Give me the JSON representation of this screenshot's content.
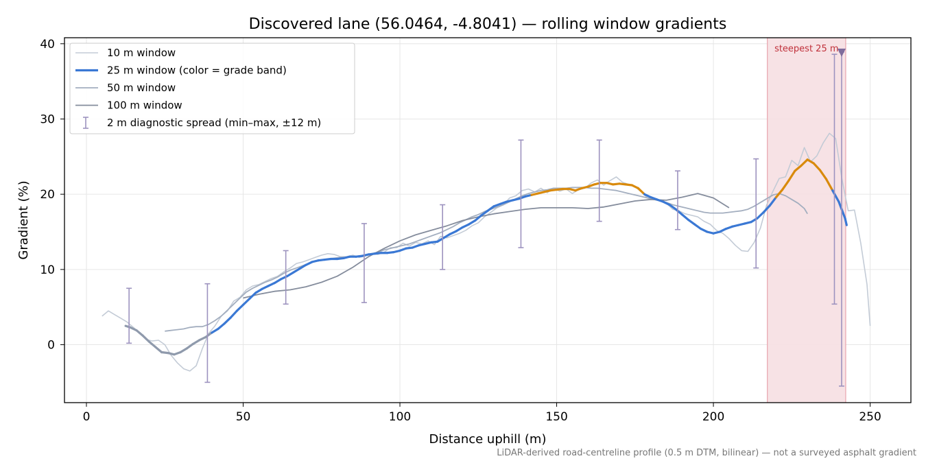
{
  "chart_data": {
    "type": "line",
    "title": "Discovered lane (56.0464, -4.8041) — rolling window gradients",
    "xlabel": "Distance uphill (m)",
    "ylabel": "Gradient (%)",
    "xlim": [
      -7,
      263
    ],
    "ylim": [
      -7.7,
      40.8
    ],
    "x_ticks": [
      0,
      50,
      100,
      150,
      200,
      250
    ],
    "y_ticks": [
      0,
      10,
      20,
      30,
      40
    ],
    "grid": true,
    "legend_position": "upper-left",
    "footnote": "LiDAR-derived road-centreline profile (0.5 m DTM, bilinear) — not a surveyed asphalt gradient",
    "colors": {
      "w10": "#c3cbd6",
      "w25_blue": "#3a78d4",
      "w25_orange": "#d98a0c",
      "w25_low": "#8f9aac",
      "w50": "#a3aebf",
      "w100": "#848c9c",
      "spread": "#9d93bf",
      "shade": "#f6dfe2",
      "shade_edge": "#e8a4ad",
      "marker": "#7f6c9c",
      "annotation": "#c0303a"
    },
    "legend": [
      {
        "key": "w10",
        "label": "10 m window"
      },
      {
        "key": "w25",
        "label": "25 m window (color = grade band)"
      },
      {
        "key": "w50",
        "label": "50 m window"
      },
      {
        "key": "w100",
        "label": "100 m window"
      },
      {
        "key": "spread",
        "label": "2 m diagnostic spread (min–max, ±12 m)"
      }
    ],
    "highlight": {
      "x_start": 217.2,
      "x_end": 242.2,
      "label": "steepest 25 m",
      "marker_x": 240.9,
      "marker_y": 38.9
    },
    "series": [
      {
        "name": "10 m window",
        "key": "w10",
        "x": [
          5,
          7,
          9,
          11,
          13,
          15,
          17,
          19,
          21,
          23,
          25,
          27,
          29,
          31,
          33,
          35,
          37,
          39,
          41,
          43,
          45,
          47,
          49,
          51,
          53,
          55,
          57,
          59,
          61,
          63,
          65,
          67,
          69,
          71,
          73,
          75,
          77,
          79,
          81,
          83,
          85,
          87,
          89,
          91,
          93,
          95,
          97,
          99,
          101,
          103,
          105,
          107,
          109,
          111,
          113,
          115,
          117,
          119,
          121,
          123,
          125,
          127,
          129,
          131,
          133,
          135,
          137,
          139,
          141,
          143,
          145,
          147,
          149,
          151,
          153,
          155,
          157,
          159,
          161,
          163,
          165,
          167,
          169,
          171,
          173,
          175,
          177,
          179,
          181,
          183,
          185,
          187,
          189,
          191,
          193,
          195,
          197,
          199,
          201,
          203,
          205,
          207,
          209,
          211,
          213,
          215,
          217,
          219,
          221,
          223,
          225,
          227,
          229,
          231,
          233,
          235,
          237,
          239,
          241,
          243,
          245,
          247,
          249,
          250
        ],
        "y": [
          3.8,
          4.5,
          4.0,
          3.5,
          3.0,
          2.3,
          1.5,
          0.7,
          0.5,
          0.6,
          0.0,
          -1.4,
          -2.4,
          -3.2,
          -3.5,
          -2.8,
          -0.5,
          1.5,
          2.5,
          3.8,
          4.5,
          5.8,
          6.3,
          7.3,
          7.8,
          8.0,
          8.4,
          8.8,
          9.1,
          9.7,
          10.2,
          10.8,
          11.0,
          11.3,
          11.6,
          11.9,
          12.1,
          12.0,
          11.7,
          11.7,
          11.9,
          11.6,
          11.8,
          12.1,
          12.0,
          12.3,
          12.9,
          12.9,
          13.5,
          13.1,
          13.6,
          13.4,
          13.8,
          13.3,
          14.4,
          14.2,
          14.5,
          14.8,
          15.2,
          15.8,
          16.2,
          17.0,
          17.6,
          18.2,
          18.6,
          19.5,
          19.8,
          20.5,
          20.7,
          20.3,
          20.8,
          20.2,
          20.8,
          20.4,
          20.7,
          20.1,
          20.6,
          20.8,
          21.5,
          21.9,
          21.2,
          21.8,
          22.3,
          21.6,
          21.3,
          21.0,
          20.3,
          19.5,
          19.3,
          19.1,
          18.8,
          18.0,
          17.8,
          17.4,
          17.2,
          17.0,
          16.4,
          16.0,
          15.2,
          14.8,
          14.1,
          13.2,
          12.5,
          12.4,
          13.6,
          15.5,
          18.6,
          20.4,
          22.1,
          22.3,
          24.5,
          23.8,
          26.2,
          24.3,
          25.1,
          26.8,
          28.1,
          27.4,
          22.0,
          17.8,
          17.9,
          13.5,
          8.0,
          2.5
        ]
      },
      {
        "name": "50 m window",
        "key": "w50",
        "x": [
          25,
          27,
          29,
          31,
          33,
          35,
          37,
          39,
          41,
          43,
          45,
          47,
          49,
          51,
          53,
          55,
          57,
          59,
          61,
          63,
          65,
          67,
          69,
          71,
          73,
          75,
          77,
          79,
          81,
          83,
          85,
          87,
          89,
          91,
          93,
          95,
          97,
          99,
          101,
          103,
          105,
          107,
          109,
          111,
          113,
          115,
          117,
          119,
          121,
          123,
          125,
          127,
          129,
          131,
          133,
          135,
          137,
          139,
          141,
          143,
          145,
          147,
          149,
          151,
          153,
          155,
          157,
          159,
          161,
          163,
          165,
          167,
          169,
          171,
          173,
          175,
          177,
          179,
          181,
          183,
          185,
          187,
          189,
          191,
          193,
          195,
          197,
          199,
          201,
          203,
          205,
          207,
          209,
          211,
          213,
          215,
          217,
          219,
          221,
          223,
          225,
          227,
          229,
          230
        ],
        "y": [
          1.8,
          1.9,
          2.0,
          2.1,
          2.3,
          2.4,
          2.4,
          2.7,
          3.2,
          3.8,
          4.6,
          5.4,
          6.2,
          7.0,
          7.5,
          7.9,
          8.3,
          8.6,
          9.0,
          9.5,
          9.9,
          10.2,
          10.5,
          10.8,
          11.1,
          11.2,
          11.4,
          11.5,
          11.6,
          11.6,
          11.7,
          11.8,
          11.9,
          12.1,
          12.3,
          12.6,
          12.8,
          13.0,
          13.2,
          13.4,
          13.7,
          14.0,
          14.3,
          14.6,
          14.9,
          15.3,
          15.7,
          16.2,
          16.6,
          17.0,
          17.3,
          17.7,
          18.0,
          18.3,
          18.6,
          19.0,
          19.4,
          19.8,
          20.1,
          20.3,
          20.5,
          20.6,
          20.8,
          20.8,
          20.8,
          20.9,
          20.9,
          20.9,
          20.8,
          20.8,
          20.7,
          20.6,
          20.5,
          20.3,
          20.1,
          19.9,
          19.7,
          19.5,
          19.3,
          19.1,
          18.9,
          18.6,
          18.4,
          18.2,
          18.0,
          17.8,
          17.6,
          17.5,
          17.5,
          17.5,
          17.6,
          17.7,
          17.8,
          18.0,
          18.4,
          18.9,
          19.4,
          19.9,
          20.1,
          19.8,
          19.3,
          18.8,
          18.1,
          17.4
        ]
      },
      {
        "name": "100 m window",
        "key": "w100",
        "x": [
          50,
          55,
          60,
          65,
          70,
          75,
          80,
          85,
          90,
          95,
          100,
          105,
          110,
          115,
          120,
          125,
          130,
          135,
          140,
          145,
          150,
          155,
          160,
          165,
          170,
          175,
          180,
          185,
          190,
          195,
          200,
          205
        ],
        "y": [
          6.2,
          6.7,
          7.1,
          7.3,
          7.7,
          8.3,
          9.1,
          10.3,
          11.7,
          12.8,
          13.8,
          14.6,
          15.2,
          15.8,
          16.5,
          17.0,
          17.4,
          17.7,
          18.0,
          18.2,
          18.2,
          18.2,
          18.1,
          18.3,
          18.7,
          19.1,
          19.3,
          19.2,
          19.6,
          20.1,
          19.5,
          18.2
        ]
      },
      {
        "name": "25 m window (color = grade band)",
        "key": "w25",
        "x": [
          12.5,
          14,
          16,
          18,
          20,
          22,
          24,
          26,
          28,
          30,
          32,
          34,
          36,
          38,
          40,
          42,
          44,
          46,
          48,
          50,
          52,
          54,
          56,
          58,
          60,
          62,
          64,
          66,
          68,
          70,
          72,
          74,
          76,
          78,
          80,
          82,
          84,
          86,
          88,
          90,
          92,
          94,
          96,
          98,
          100,
          102,
          104,
          106,
          108,
          110,
          112,
          114,
          116,
          118,
          120,
          122,
          124,
          126,
          128,
          130,
          132,
          134,
          136,
          138,
          140,
          142,
          144,
          146,
          148,
          150,
          152,
          154,
          156,
          158,
          160,
          162,
          164,
          166,
          168,
          170,
          172,
          174,
          176,
          178,
          180,
          182,
          184,
          186,
          188,
          190,
          192,
          194,
          196,
          198,
          200,
          202,
          204,
          206,
          208,
          210,
          212,
          214,
          216,
          218,
          220,
          222,
          224,
          226,
          228,
          230,
          232,
          234,
          236,
          238,
          240,
          242,
          242.5
        ],
        "y": [
          2.5,
          2.3,
          1.9,
          1.2,
          0.4,
          -0.3,
          -1.0,
          -1.1,
          -1.3,
          -1.0,
          -0.5,
          0.1,
          0.6,
          1.0,
          1.6,
          2.1,
          2.8,
          3.6,
          4.5,
          5.3,
          6.1,
          6.9,
          7.4,
          7.8,
          8.2,
          8.7,
          9.1,
          9.6,
          10.1,
          10.6,
          11.0,
          11.2,
          11.3,
          11.4,
          11.4,
          11.5,
          11.7,
          11.7,
          11.8,
          12.0,
          12.1,
          12.2,
          12.2,
          12.3,
          12.5,
          12.8,
          12.9,
          13.2,
          13.4,
          13.6,
          13.7,
          14.2,
          14.7,
          15.1,
          15.6,
          16.0,
          16.5,
          17.2,
          17.8,
          18.4,
          18.7,
          19.0,
          19.2,
          19.4,
          19.7,
          19.9,
          20.1,
          20.3,
          20.5,
          20.6,
          20.7,
          20.7,
          20.5,
          20.8,
          21.0,
          21.3,
          21.5,
          21.5,
          21.3,
          21.4,
          21.3,
          21.2,
          20.8,
          20.0,
          19.6,
          19.3,
          19.0,
          18.6,
          18.0,
          17.3,
          16.6,
          16.0,
          15.4,
          15.0,
          14.8,
          15.0,
          15.4,
          15.7,
          15.9,
          16.1,
          16.3,
          16.8,
          17.6,
          18.5,
          19.6,
          20.6,
          21.8,
          23.1,
          23.8,
          24.6,
          24.1,
          23.2,
          22.0,
          20.5,
          19.0,
          16.8,
          15.9
        ],
        "band_threshold": 20,
        "low_until_x": 40
      },
      {
        "name": "2 m diagnostic spread (min–max, ±12 m)",
        "key": "spread",
        "type": "errorbar",
        "points": [
          {
            "x": 13.6,
            "min": 0.2,
            "max": 7.5
          },
          {
            "x": 38.6,
            "min": -5.0,
            "max": 8.1
          },
          {
            "x": 63.6,
            "min": 5.4,
            "max": 12.5
          },
          {
            "x": 88.6,
            "min": 5.6,
            "max": 16.1
          },
          {
            "x": 113.6,
            "min": 10.0,
            "max": 18.6
          },
          {
            "x": 138.6,
            "min": 12.9,
            "max": 27.2
          },
          {
            "x": 163.6,
            "min": 16.4,
            "max": 27.2
          },
          {
            "x": 188.6,
            "min": 15.3,
            "max": 23.1
          },
          {
            "x": 213.6,
            "min": 10.2,
            "max": 24.7
          },
          {
            "x": 238.6,
            "min": 5.4,
            "max": 38.6
          },
          {
            "x": 240.9,
            "min": -5.5,
            "max": 38.9
          }
        ]
      }
    ]
  }
}
